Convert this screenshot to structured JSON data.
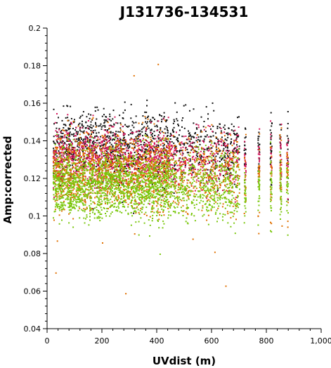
{
  "chart_data": {
    "type": "scatter",
    "title": "J131736-134531",
    "xlabel": "UVdist (m)",
    "ylabel": "Amp:corrected",
    "xlim": [
      0,
      1000
    ],
    "ylim": [
      0.04,
      0.2
    ],
    "x_ticks": [
      0,
      200,
      400,
      600,
      800,
      1000
    ],
    "x_tick_labels": [
      "0",
      "200",
      "400",
      "600",
      "800",
      "1,000"
    ],
    "y_ticks": [
      0.04,
      0.06,
      0.08,
      0.1,
      0.12,
      0.14,
      0.16,
      0.18,
      0.2
    ],
    "y_tick_labels": [
      "0.04",
      "0.06",
      "0.08",
      "0.1",
      "0.12",
      "0.14",
      "0.16",
      "0.18",
      "0.2"
    ],
    "grid": false,
    "legend": "none",
    "series": [
      {
        "color": "#111111",
        "center": 0.138,
        "spread": 0.009
      },
      {
        "color": "#d4145a",
        "center": 0.131,
        "spread": 0.008
      },
      {
        "color": "#e07000",
        "center": 0.124,
        "spread": 0.01
      },
      {
        "color": "#7ac70c",
        "center": 0.117,
        "spread": 0.009
      }
    ],
    "outliers": [
      {
        "x": 403,
        "y": 0.181,
        "color": "#e07000"
      },
      {
        "x": 315,
        "y": 0.175,
        "color": "#e07000"
      },
      {
        "x": 30,
        "y": 0.07,
        "color": "#e07000"
      },
      {
        "x": 285,
        "y": 0.059,
        "color": "#e07000"
      },
      {
        "x": 650,
        "y": 0.063,
        "color": "#e07000"
      },
      {
        "x": 610,
        "y": 0.081,
        "color": "#e07000"
      },
      {
        "x": 410,
        "y": 0.08,
        "color": "#7ac70c"
      },
      {
        "x": 35,
        "y": 0.087,
        "color": "#e07000"
      },
      {
        "x": 855,
        "y": 0.095,
        "color": "#e07000"
      },
      {
        "x": 770,
        "y": 0.091,
        "color": "#e07000"
      },
      {
        "x": 530,
        "y": 0.088,
        "color": "#e07000"
      },
      {
        "x": 200,
        "y": 0.086,
        "color": "#e07000"
      }
    ]
  }
}
